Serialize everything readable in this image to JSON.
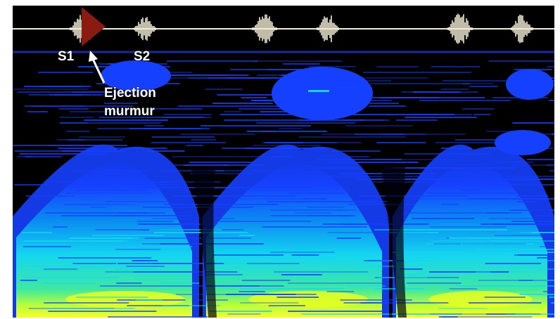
{
  "labels": {
    "s1": "S1",
    "s2": "S2",
    "annotation_line1": "Ejection",
    "annotation_line2": "murmur"
  },
  "colors": {
    "background": "#000000",
    "waveform": "#f2ecd4",
    "baseline": "#1b2a9c",
    "marker": "#8b1a10",
    "spectrum_low": "#1640ff",
    "spectrum_mid": "#14d6f0",
    "spectrum_high": "#e8ff20"
  },
  "icons": {
    "marker": "triangle-marker-icon",
    "pointer": "arrow-icon"
  }
}
